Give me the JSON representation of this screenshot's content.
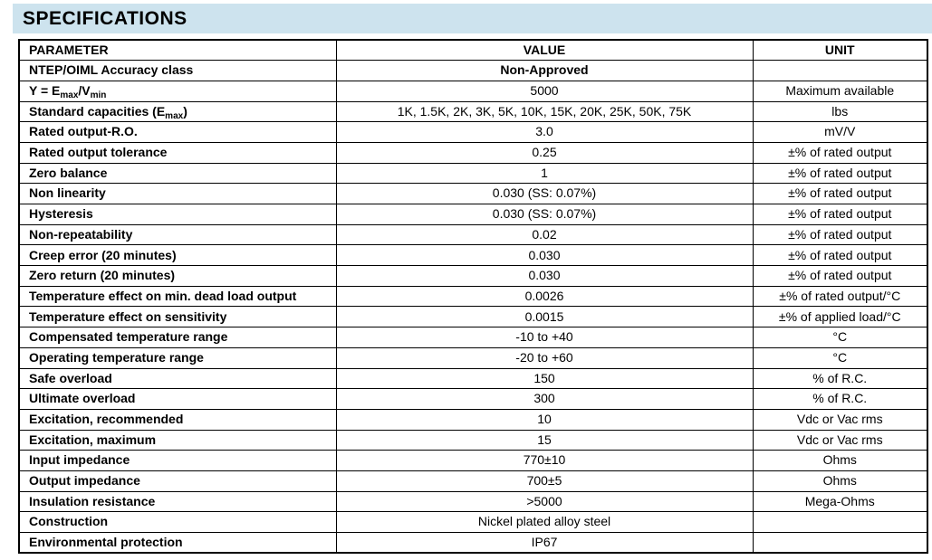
{
  "title": "SPECIFICATIONS",
  "colors": {
    "title_bar_bg": "#cde3ee",
    "table_border": "#000000",
    "text": "#000000",
    "page_bg": "#ffffff"
  },
  "table": {
    "headers": [
      "PARAMETER",
      "VALUE",
      "UNIT"
    ],
    "rows": [
      {
        "parameter": "NTEP/OIML Accuracy class",
        "value": "Non-Approved",
        "value_bold": true,
        "unit": ""
      },
      {
        "parameter": "Y = Emax/Vmin",
        "parameter_parts": [
          {
            "text": "Y = E"
          },
          {
            "text": "max",
            "sub": true
          },
          {
            "text": "/V"
          },
          {
            "text": "min",
            "sub": true
          }
        ],
        "value": "5000",
        "unit": "Maximum available"
      },
      {
        "parameter": "Standard capacities (Emax)",
        "parameter_parts": [
          {
            "text": "Standard capacities (E"
          },
          {
            "text": "max",
            "sub": true
          },
          {
            "text": ")"
          }
        ],
        "value": "1K, 1.5K, 2K, 3K, 5K, 10K, 15K, 20K, 25K, 50K, 75K",
        "unit": "lbs"
      },
      {
        "parameter": "Rated output-R.O.",
        "value": "3.0",
        "unit": "mV/V"
      },
      {
        "parameter": "Rated output tolerance",
        "value": "0.25",
        "unit": "±% of rated output"
      },
      {
        "parameter": "Zero balance",
        "value": "1",
        "unit": "±% of rated output"
      },
      {
        "parameter": "Non linearity",
        "value": "0.030 (SS: 0.07%)",
        "unit": "±% of rated output"
      },
      {
        "parameter": "Hysteresis",
        "value": "0.030 (SS: 0.07%)",
        "unit": "±% of rated output"
      },
      {
        "parameter": "Non-repeatability",
        "value": "0.02",
        "unit": "±% of rated output"
      },
      {
        "parameter": "Creep error (20 minutes)",
        "value": "0.030",
        "unit": "±% of rated output"
      },
      {
        "parameter": "Zero return (20 minutes)",
        "value": "0.030",
        "unit": "±% of rated output"
      },
      {
        "parameter": "Temperature effect on min. dead load output",
        "value": "0.0026",
        "unit": "±% of rated output/°C"
      },
      {
        "parameter": "Temperature effect on sensitivity",
        "value": "0.0015",
        "unit": "±% of applied load/°C"
      },
      {
        "parameter": "Compensated temperature range",
        "value": "-10 to +40",
        "unit": "°C"
      },
      {
        "parameter": "Operating temperature range",
        "value": "-20 to +60",
        "unit": "°C"
      },
      {
        "parameter": "Safe overload",
        "value": "150",
        "unit": "% of R.C."
      },
      {
        "parameter": "Ultimate overload",
        "value": "300",
        "unit": "% of R.C."
      },
      {
        "parameter": "Excitation, recommended",
        "value": "10",
        "unit": "Vdc or Vac rms"
      },
      {
        "parameter": "Excitation, maximum",
        "value": "15",
        "unit": "Vdc or Vac rms"
      },
      {
        "parameter": "Input impedance",
        "value": "770±10",
        "unit": "Ohms"
      },
      {
        "parameter": "Output impedance",
        "value": "700±5",
        "unit": "Ohms"
      },
      {
        "parameter": "Insulation resistance",
        "value": ">5000",
        "unit": "Mega-Ohms"
      },
      {
        "parameter": "Construction",
        "value": "Nickel plated alloy steel",
        "unit": ""
      },
      {
        "parameter": "Environmental protection",
        "value": "IP67",
        "unit": ""
      }
    ]
  }
}
